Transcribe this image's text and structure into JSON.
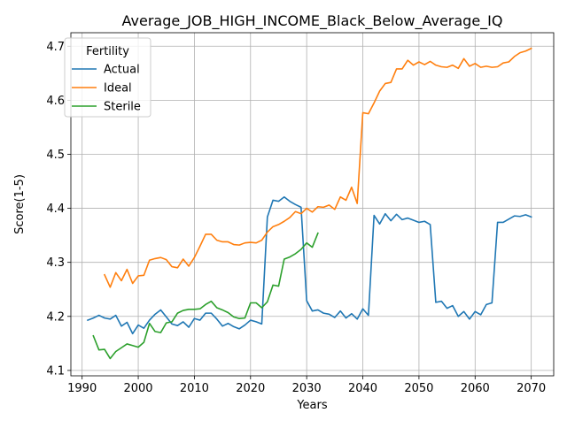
{
  "chart_data": {
    "type": "line",
    "title": "Average_JOB_HIGH_INCOME_Black_Below_Average_IQ",
    "xlabel": "Years",
    "ylabel": "Score(1-5)",
    "xlim": [
      1988,
      2074
    ],
    "ylim": [
      4.09,
      4.725
    ],
    "xticks": [
      1990,
      2000,
      2010,
      2020,
      2030,
      2040,
      2050,
      2060,
      2070
    ],
    "yticks": [
      4.1,
      4.2,
      4.3,
      4.4,
      4.5,
      4.6,
      4.7
    ],
    "xtick_labels": [
      "1990",
      "2000",
      "2010",
      "2020",
      "2030",
      "2040",
      "2050",
      "2060",
      "2070"
    ],
    "ytick_labels": [
      "4.1",
      "4.2",
      "4.3",
      "4.4",
      "4.5",
      "4.6",
      "4.7"
    ],
    "grid": true,
    "legend": {
      "title": "Fertility",
      "placement": "upper-left"
    },
    "series": [
      {
        "name": "Actual",
        "color": "#1f77b4",
        "x": [
          1991,
          1992,
          1993,
          1994,
          1995,
          1996,
          1997,
          1998,
          1999,
          2000,
          2001,
          2002,
          2003,
          2004,
          2005,
          2006,
          2007,
          2008,
          2009,
          2010,
          2011,
          2012,
          2013,
          2014,
          2015,
          2016,
          2017,
          2018,
          2019,
          2020,
          2021,
          2022,
          2023,
          2024,
          2025,
          2026,
          2027,
          2028,
          2029,
          2030,
          2031,
          2032,
          2033,
          2034,
          2035,
          2036,
          2037,
          2038,
          2039,
          2040,
          2041,
          2042,
          2043,
          2044,
          2045,
          2046,
          2047,
          2048,
          2049,
          2050,
          2051,
          2052,
          2053,
          2054,
          2055,
          2056,
          2057,
          2058,
          2059,
          2060,
          2061,
          2062,
          2063,
          2064,
          2065,
          2066,
          2067,
          2068,
          2069,
          2070
        ],
        "y": [
          4.193,
          4.197,
          4.202,
          4.197,
          4.195,
          4.202,
          4.182,
          4.189,
          4.168,
          4.184,
          4.178,
          4.193,
          4.204,
          4.212,
          4.199,
          4.186,
          4.183,
          4.19,
          4.18,
          4.196,
          4.193,
          4.206,
          4.206,
          4.195,
          4.182,
          4.187,
          4.181,
          4.177,
          4.184,
          4.193,
          4.19,
          4.186,
          4.384,
          4.415,
          4.413,
          4.421,
          4.413,
          4.407,
          4.402,
          4.229,
          4.21,
          4.212,
          4.206,
          4.204,
          4.198,
          4.21,
          4.197,
          4.205,
          4.195,
          4.214,
          4.202,
          4.387,
          4.371,
          4.39,
          4.377,
          4.389,
          4.379,
          4.382,
          4.378,
          4.374,
          4.376,
          4.37,
          4.226,
          4.228,
          4.215,
          4.22,
          4.2,
          4.209,
          4.195,
          4.209,
          4.203,
          4.222,
          4.225,
          4.374,
          4.374,
          4.38,
          4.386,
          4.385,
          4.388,
          4.384
        ]
      },
      {
        "name": "Ideal",
        "color": "#ff7f0e",
        "x": [
          1994,
          1995,
          1996,
          1997,
          1998,
          1999,
          2000,
          2001,
          2002,
          2003,
          2004,
          2005,
          2006,
          2007,
          2008,
          2009,
          2010,
          2011,
          2012,
          2013,
          2014,
          2015,
          2016,
          2017,
          2018,
          2019,
          2020,
          2021,
          2022,
          2023,
          2024,
          2025,
          2026,
          2027,
          2028,
          2029,
          2030,
          2031,
          2032,
          2033,
          2034,
          2035,
          2036,
          2037,
          2038,
          2039,
          2040,
          2041,
          2042,
          2043,
          2044,
          2045,
          2046,
          2047,
          2048,
          2049,
          2050,
          2051,
          2052,
          2053,
          2054,
          2055,
          2056,
          2057,
          2058,
          2059,
          2060,
          2061,
          2062,
          2063,
          2064,
          2065,
          2066,
          2067,
          2068,
          2069,
          2070
        ],
        "y": [
          4.277,
          4.254,
          4.281,
          4.266,
          4.287,
          4.261,
          4.275,
          4.276,
          4.304,
          4.307,
          4.309,
          4.305,
          4.292,
          4.29,
          4.306,
          4.293,
          4.309,
          4.33,
          4.352,
          4.352,
          4.341,
          4.338,
          4.338,
          4.333,
          4.332,
          4.336,
          4.337,
          4.336,
          4.341,
          4.356,
          4.366,
          4.37,
          4.376,
          4.383,
          4.394,
          4.39,
          4.4,
          4.393,
          4.403,
          4.402,
          4.406,
          4.398,
          4.421,
          4.415,
          4.439,
          4.409,
          4.577,
          4.575,
          4.595,
          4.617,
          4.631,
          4.633,
          4.658,
          4.658,
          4.674,
          4.665,
          4.671,
          4.666,
          4.672,
          4.665,
          4.662,
          4.661,
          4.665,
          4.659,
          4.677,
          4.663,
          4.668,
          4.661,
          4.663,
          4.661,
          4.662,
          4.669,
          4.671,
          4.681,
          4.688,
          4.691,
          4.696
        ]
      },
      {
        "name": "Sterile",
        "color": "#2ca02c",
        "x": [
          1992,
          1993,
          1994,
          1995,
          1996,
          1997,
          1998,
          1999,
          2000,
          2001,
          2002,
          2003,
          2004,
          2005,
          2006,
          2007,
          2008,
          2009,
          2010,
          2011,
          2012,
          2013,
          2014,
          2015,
          2016,
          2017,
          2018,
          2019,
          2020,
          2021,
          2022,
          2023,
          2024,
          2025,
          2026,
          2027,
          2028,
          2029,
          2030,
          2031,
          2032
        ],
        "y": [
          4.164,
          4.138,
          4.139,
          4.122,
          4.135,
          4.142,
          4.149,
          4.146,
          4.143,
          4.152,
          4.187,
          4.172,
          4.17,
          4.188,
          4.19,
          4.206,
          4.211,
          4.213,
          4.213,
          4.214,
          4.222,
          4.228,
          4.216,
          4.212,
          4.207,
          4.199,
          4.196,
          4.197,
          4.225,
          4.225,
          4.216,
          4.227,
          4.258,
          4.256,
          4.306,
          4.31,
          4.316,
          4.324,
          4.336,
          4.328,
          4.354
        ]
      }
    ]
  }
}
